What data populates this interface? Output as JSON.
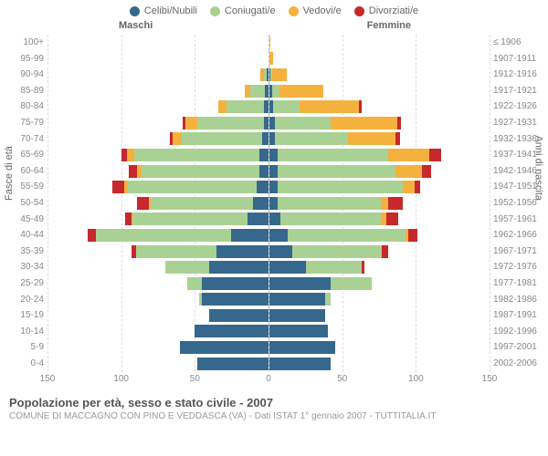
{
  "legend": [
    {
      "label": "Celibi/Nubili",
      "color": "#36688d"
    },
    {
      "label": "Coniugati/e",
      "color": "#aad194"
    },
    {
      "label": "Vedovi/e",
      "color": "#f5b13d"
    },
    {
      "label": "Divorziati/e",
      "color": "#c6282b"
    }
  ],
  "headers": {
    "male": "Maschi",
    "female": "Femmine"
  },
  "axis_titles": {
    "left": "Fasce di età",
    "right": "Anni di nascita"
  },
  "colors": {
    "celibi": "#36688d",
    "coniugati": "#aad194",
    "vedovi": "#f5b13d",
    "divorziati": "#c6282b",
    "grid": "#dddddd",
    "center": "#bbbbbb",
    "bg": "#ffffff"
  },
  "xmax": 150,
  "xticks": [
    0,
    50,
    100,
    150
  ],
  "rows": [
    {
      "age": "100+",
      "birth": "≤ 1906",
      "m": {
        "c": 0,
        "co": 0,
        "v": 0,
        "d": 0
      },
      "f": {
        "c": 0,
        "co": 0,
        "v": 1,
        "d": 0
      }
    },
    {
      "age": "95-99",
      "birth": "1907-1911",
      "m": {
        "c": 0,
        "co": 0,
        "v": 0,
        "d": 0
      },
      "f": {
        "c": 0,
        "co": 0,
        "v": 3,
        "d": 0
      }
    },
    {
      "age": "90-94",
      "birth": "1912-1916",
      "m": {
        "c": 1,
        "co": 2,
        "v": 2,
        "d": 0
      },
      "f": {
        "c": 1,
        "co": 1,
        "v": 10,
        "d": 0
      }
    },
    {
      "age": "85-89",
      "birth": "1917-1921",
      "m": {
        "c": 2,
        "co": 10,
        "v": 4,
        "d": 0
      },
      "f": {
        "c": 2,
        "co": 5,
        "v": 30,
        "d": 0
      }
    },
    {
      "age": "80-84",
      "birth": "1922-1926",
      "m": {
        "c": 3,
        "co": 25,
        "v": 6,
        "d": 0
      },
      "f": {
        "c": 3,
        "co": 18,
        "v": 40,
        "d": 2
      }
    },
    {
      "age": "75-79",
      "birth": "1927-1931",
      "m": {
        "c": 3,
        "co": 45,
        "v": 8,
        "d": 2
      },
      "f": {
        "c": 4,
        "co": 38,
        "v": 45,
        "d": 3
      }
    },
    {
      "age": "70-74",
      "birth": "1932-1936",
      "m": {
        "c": 4,
        "co": 55,
        "v": 6,
        "d": 2
      },
      "f": {
        "c": 4,
        "co": 50,
        "v": 32,
        "d": 3
      }
    },
    {
      "age": "65-69",
      "birth": "1937-1941",
      "m": {
        "c": 6,
        "co": 85,
        "v": 5,
        "d": 4
      },
      "f": {
        "c": 6,
        "co": 75,
        "v": 28,
        "d": 8
      }
    },
    {
      "age": "60-64",
      "birth": "1942-1946",
      "m": {
        "c": 6,
        "co": 80,
        "v": 3,
        "d": 6
      },
      "f": {
        "c": 6,
        "co": 80,
        "v": 18,
        "d": 6
      }
    },
    {
      "age": "55-59",
      "birth": "1947-1951",
      "m": {
        "c": 8,
        "co": 88,
        "v": 2,
        "d": 8
      },
      "f": {
        "c": 6,
        "co": 85,
        "v": 8,
        "d": 4
      }
    },
    {
      "age": "50-54",
      "birth": "1952-1956",
      "m": {
        "c": 10,
        "co": 70,
        "v": 1,
        "d": 8
      },
      "f": {
        "c": 6,
        "co": 70,
        "v": 5,
        "d": 10
      }
    },
    {
      "age": "45-49",
      "birth": "1957-1961",
      "m": {
        "c": 14,
        "co": 78,
        "v": 1,
        "d": 4
      },
      "f": {
        "c": 8,
        "co": 68,
        "v": 4,
        "d": 8
      }
    },
    {
      "age": "40-44",
      "birth": "1962-1966",
      "m": {
        "c": 25,
        "co": 92,
        "v": 0,
        "d": 6
      },
      "f": {
        "c": 13,
        "co": 80,
        "v": 2,
        "d": 6
      }
    },
    {
      "age": "35-39",
      "birth": "1967-1971",
      "m": {
        "c": 35,
        "co": 55,
        "v": 0,
        "d": 3
      },
      "f": {
        "c": 16,
        "co": 60,
        "v": 1,
        "d": 4
      }
    },
    {
      "age": "30-34",
      "birth": "1972-1976",
      "m": {
        "c": 40,
        "co": 30,
        "v": 0,
        "d": 0
      },
      "f": {
        "c": 25,
        "co": 38,
        "v": 0,
        "d": 2
      }
    },
    {
      "age": "25-29",
      "birth": "1977-1981",
      "m": {
        "c": 45,
        "co": 10,
        "v": 0,
        "d": 0
      },
      "f": {
        "c": 42,
        "co": 28,
        "v": 0,
        "d": 0
      }
    },
    {
      "age": "20-24",
      "birth": "1982-1986",
      "m": {
        "c": 45,
        "co": 2,
        "v": 0,
        "d": 0
      },
      "f": {
        "c": 38,
        "co": 4,
        "v": 0,
        "d": 0
      }
    },
    {
      "age": "15-19",
      "birth": "1987-1991",
      "m": {
        "c": 40,
        "co": 0,
        "v": 0,
        "d": 0
      },
      "f": {
        "c": 38,
        "co": 0,
        "v": 0,
        "d": 0
      }
    },
    {
      "age": "10-14",
      "birth": "1992-1996",
      "m": {
        "c": 50,
        "co": 0,
        "v": 0,
        "d": 0
      },
      "f": {
        "c": 40,
        "co": 0,
        "v": 0,
        "d": 0
      }
    },
    {
      "age": "5-9",
      "birth": "1997-2001",
      "m": {
        "c": 60,
        "co": 0,
        "v": 0,
        "d": 0
      },
      "f": {
        "c": 45,
        "co": 0,
        "v": 0,
        "d": 0
      }
    },
    {
      "age": "0-4",
      "birth": "2002-2006",
      "m": {
        "c": 48,
        "co": 0,
        "v": 0,
        "d": 0
      },
      "f": {
        "c": 42,
        "co": 0,
        "v": 0,
        "d": 0
      }
    }
  ],
  "footer": {
    "title": "Popolazione per età, sesso e stato civile - 2007",
    "sub": "COMUNE DI MACCAGNO CON PINO E VEDDASCA (VA) - Dati ISTAT 1° gennaio 2007 - TUTTITALIA.IT"
  }
}
